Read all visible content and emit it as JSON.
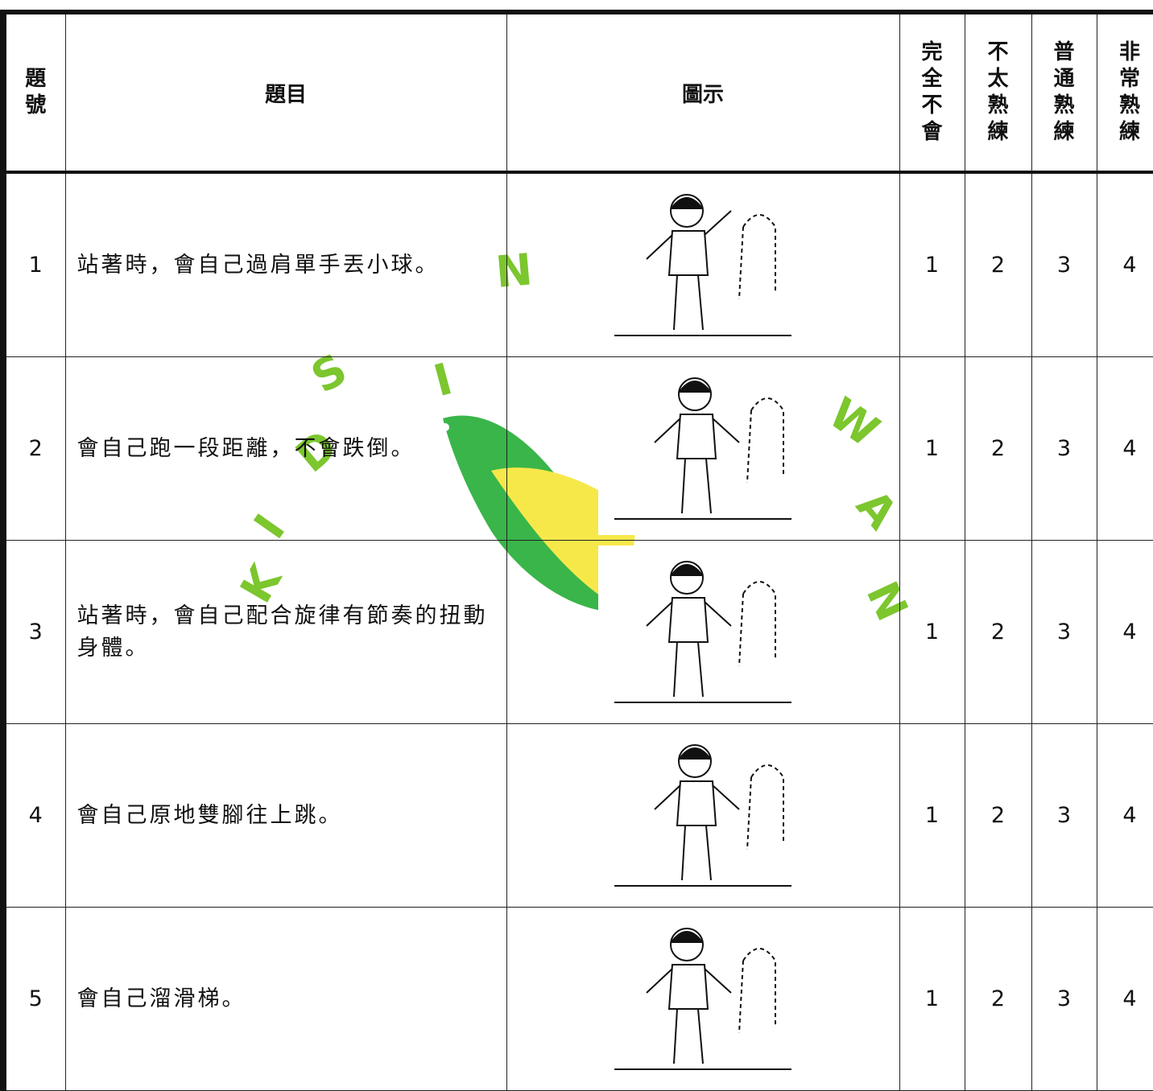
{
  "header": {
    "number": "題號",
    "item": "題目",
    "picture": "圖示",
    "levels": [
      "完全不會",
      "不太熟練",
      "普通熟練",
      "非常熟練"
    ]
  },
  "rows": [
    {
      "number": 1,
      "item": "站著時，會自己過肩單手丟小球。",
      "scale": [
        1,
        2,
        3,
        4
      ]
    },
    {
      "number": 2,
      "item": "會自己跑一段距離，不會跌倒。",
      "scale": [
        1,
        2,
        3,
        4
      ]
    },
    {
      "number": 3,
      "item": "站著時，會自己配合旋律有節奏的扭動身體。",
      "scale": [
        1,
        2,
        3,
        4
      ]
    },
    {
      "number": 4,
      "item": "會自己原地雙腳往上跳。",
      "scale": [
        1,
        2,
        3,
        4
      ]
    },
    {
      "number": 5,
      "item": "會自己溜滑梯。",
      "scale": [
        1,
        2,
        3,
        4
      ]
    }
  ],
  "watermark": [
    "K",
    "I",
    "D",
    "S",
    "I",
    "N",
    "W",
    "A",
    "N"
  ]
}
